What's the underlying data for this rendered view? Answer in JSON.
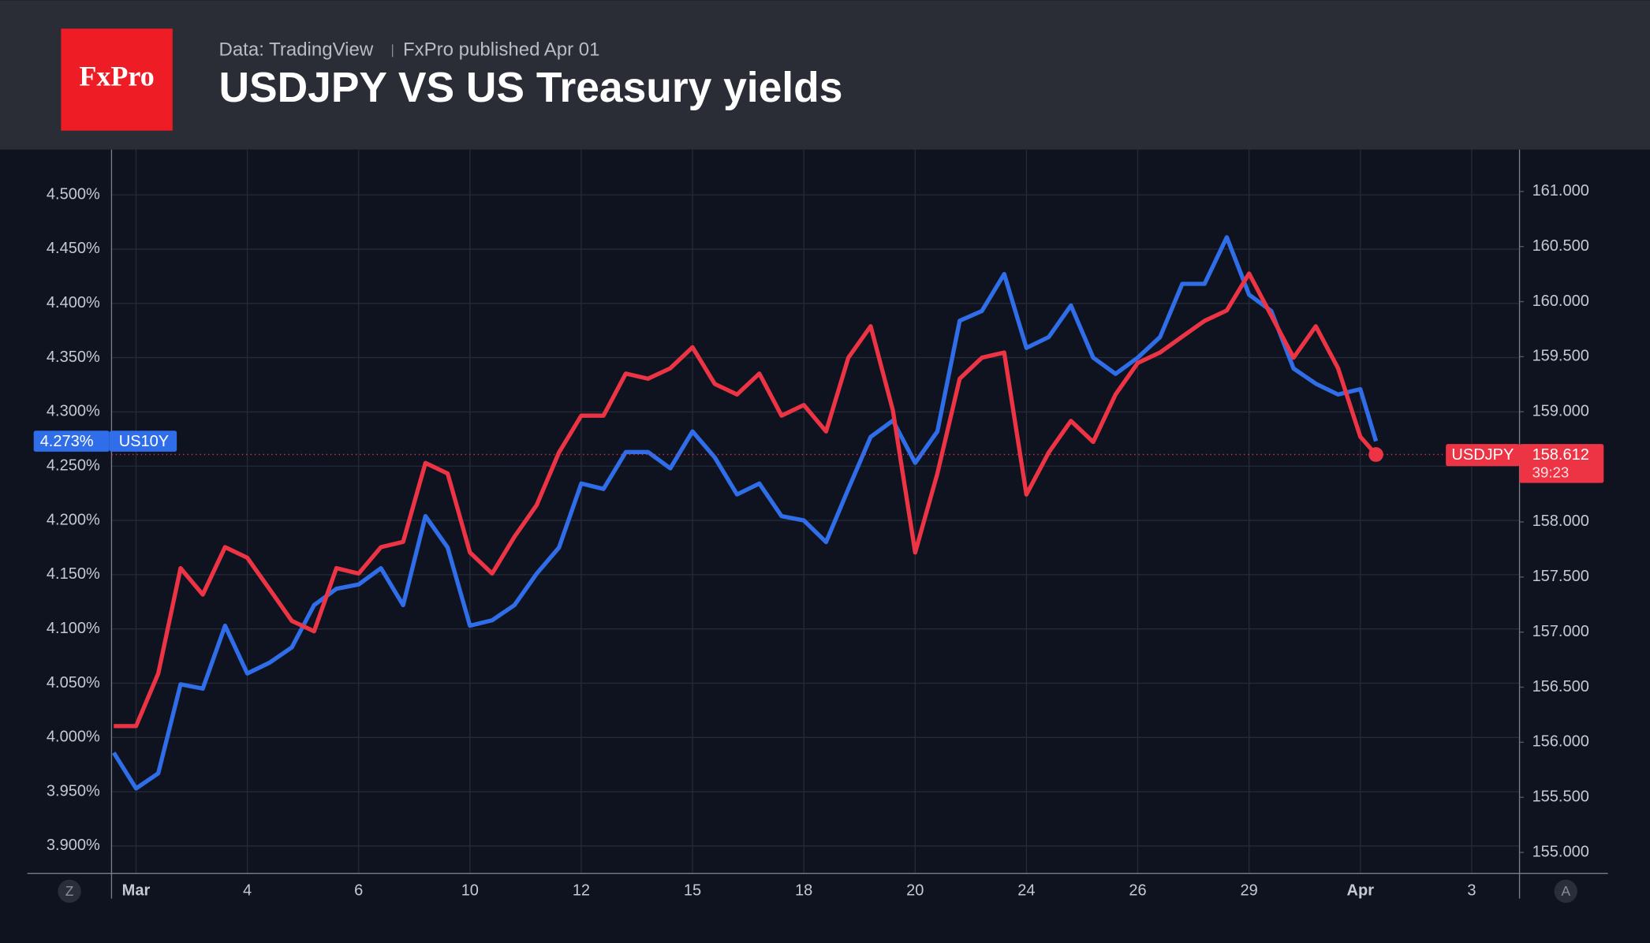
{
  "header": {
    "logo": "FxPro",
    "source": "Data: TradingView",
    "published": "FxPro published Apr 01"
  },
  "chart_data": {
    "type": "line",
    "title": "USDJPY VS US Treasury yields",
    "x": [
      -0.2,
      0,
      0.2,
      0.4,
      0.6,
      0.8,
      1.0,
      1.2,
      1.4,
      1.6,
      1.8,
      2.0,
      2.2,
      2.4,
      2.6,
      2.8,
      3.0,
      3.2,
      3.4,
      3.6,
      3.8,
      4.0,
      4.2,
      4.4,
      4.6,
      4.8,
      5.0,
      5.2,
      5.4,
      5.6,
      5.8,
      6.0,
      6.2,
      6.4,
      6.6,
      6.8,
      7.0,
      7.2,
      7.4,
      7.6,
      7.8,
      8.0,
      8.2,
      8.4,
      8.6,
      8.8,
      9.0,
      9.2,
      9.4,
      9.6,
      9.8,
      10.0,
      10.2,
      10.4,
      10.6,
      10.8,
      11.0,
      11.14
    ],
    "xlim": [
      -0.22,
      12.43
    ],
    "xticks": [
      {
        "value": 0,
        "label": "Mar"
      },
      {
        "value": 1,
        "label": "4"
      },
      {
        "value": 2,
        "label": "6"
      },
      {
        "value": 3,
        "label": "10"
      },
      {
        "value": 4,
        "label": "12"
      },
      {
        "value": 5,
        "label": "15"
      },
      {
        "value": 6,
        "label": "18"
      },
      {
        "value": 7,
        "label": "20"
      },
      {
        "value": 8,
        "label": "24"
      },
      {
        "value": 9,
        "label": "26"
      },
      {
        "value": 10,
        "label": "29"
      },
      {
        "value": 11,
        "label": "Apr"
      },
      {
        "value": 12,
        "label": "3"
      }
    ],
    "ylim": [
      3.8748,
      4.5417
    ],
    "yticks": [
      {
        "value": 3.9,
        "label": "3.900%"
      },
      {
        "value": 3.95,
        "label": "3.950%"
      },
      {
        "value": 4.0,
        "label": "4.000%"
      },
      {
        "value": 4.05,
        "label": "4.050%"
      },
      {
        "value": 4.1,
        "label": "4.100%"
      },
      {
        "value": 4.15,
        "label": "4.150%"
      },
      {
        "value": 4.2,
        "label": "4.200%"
      },
      {
        "value": 4.25,
        "label": "4.250%"
      },
      {
        "value": 4.3,
        "label": "4.300%"
      },
      {
        "value": 4.35,
        "label": "4.350%"
      },
      {
        "value": 4.4,
        "label": "4.400%"
      },
      {
        "value": 4.45,
        "label": "4.450%"
      },
      {
        "value": 4.5,
        "label": "4.500%"
      }
    ],
    "y2lim": [
      154.81,
      161.38
    ],
    "y2ticks": [
      {
        "value": 155,
        "label": "155.000"
      },
      {
        "value": 155.5,
        "label": "155.500"
      },
      {
        "value": 156,
        "label": "156.000"
      },
      {
        "value": 156.5,
        "label": "156.500"
      },
      {
        "value": 157,
        "label": "157.000"
      },
      {
        "value": 157.5,
        "label": "157.500"
      },
      {
        "value": 158,
        "label": "158.000"
      },
      {
        "value": 158.5,
        "label": "158.500"
      },
      {
        "value": 159,
        "label": "159.000"
      },
      {
        "value": 159.5,
        "label": "159.500"
      },
      {
        "value": 160,
        "label": "160.000"
      },
      {
        "value": 160.5,
        "label": "160.500"
      },
      {
        "value": 161,
        "label": "161.000"
      }
    ],
    "grid": true,
    "series": [
      {
        "name": "US10Y",
        "color": "#2f6ee8",
        "axis": "y",
        "price_label": "4.273%",
        "values": [
          3.986,
          3.953,
          3.967,
          4.049,
          4.045,
          4.103,
          4.059,
          4.069,
          4.083,
          4.122,
          4.137,
          4.141,
          4.156,
          4.122,
          4.204,
          4.175,
          4.103,
          4.108,
          4.122,
          4.151,
          4.175,
          4.234,
          4.229,
          4.263,
          4.263,
          4.248,
          4.282,
          4.258,
          4.224,
          4.234,
          4.204,
          4.2,
          4.18,
          4.229,
          4.277,
          4.292,
          4.253,
          4.282,
          4.384,
          4.393,
          4.427,
          4.359,
          4.369,
          4.398,
          4.35,
          4.335,
          4.35,
          4.369,
          4.418,
          4.418,
          4.461,
          4.408,
          4.393,
          4.34,
          4.326,
          4.316,
          4.321,
          4.273
        ]
      },
      {
        "name": "USDJPY",
        "color": "#ec3445",
        "axis": "y2",
        "price_label": "158.612",
        "countdown": "39:23",
        "values": [
          156.147,
          156.147,
          156.624,
          157.58,
          157.341,
          157.771,
          157.675,
          157.389,
          157.102,
          157.007,
          157.58,
          157.532,
          157.771,
          157.819,
          158.535,
          158.44,
          157.723,
          157.532,
          157.866,
          158.153,
          158.631,
          158.965,
          158.965,
          159.347,
          159.3,
          159.395,
          159.586,
          159.252,
          159.157,
          159.347,
          158.965,
          159.061,
          158.822,
          159.491,
          159.777,
          159.013,
          157.723,
          158.44,
          159.3,
          159.491,
          159.538,
          158.249,
          158.631,
          158.917,
          158.726,
          159.157,
          159.443,
          159.538,
          159.682,
          159.825,
          159.92,
          160.255,
          159.873,
          159.491,
          159.777,
          159.395,
          158.774,
          158.612
        ]
      }
    ],
    "buttons": [
      "Z",
      "A"
    ]
  }
}
